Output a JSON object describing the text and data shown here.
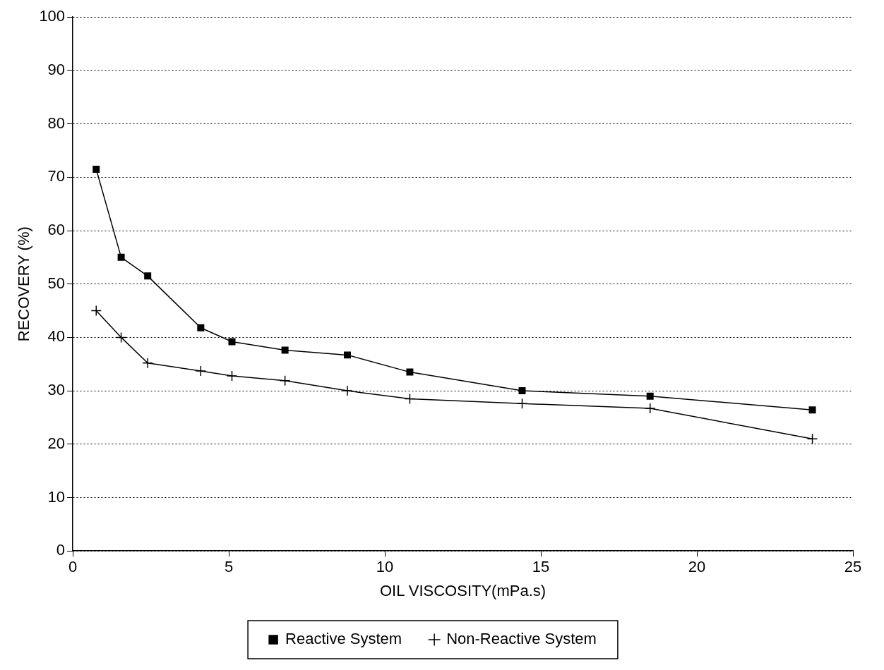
{
  "chart_data": {
    "type": "line",
    "xlabel": "OIL VISCOSITY(mPa.s)",
    "ylabel": "RECOVERY (%)",
    "x": [
      0.75,
      1.55,
      2.4,
      4.1,
      5.1,
      6.8,
      8.8,
      10.8,
      14.4,
      18.5,
      23.7
    ],
    "series": [
      {
        "name": "Reactive System",
        "color": "#000000",
        "marker": "square",
        "values": [
          71.5,
          55,
          51.5,
          41.8,
          39.2,
          37.6,
          36.7,
          33.5,
          30,
          29,
          26.4
        ]
      },
      {
        "name": "Non-Reactive System",
        "color": "#000000",
        "marker": "cross",
        "values": [
          45,
          40,
          35.2,
          33.7,
          32.8,
          31.9,
          30,
          28.5,
          27.6,
          26.7,
          21
        ]
      }
    ],
    "xlim": [
      0,
      25
    ],
    "xticks": [
      0,
      5,
      10,
      15,
      20,
      25
    ],
    "ylim": [
      0,
      100
    ],
    "yticks": [
      0,
      10,
      20,
      30,
      40,
      50,
      60,
      70,
      80,
      90,
      100
    ],
    "grid": "y",
    "legend": "bottom",
    "line_style": "solid"
  }
}
